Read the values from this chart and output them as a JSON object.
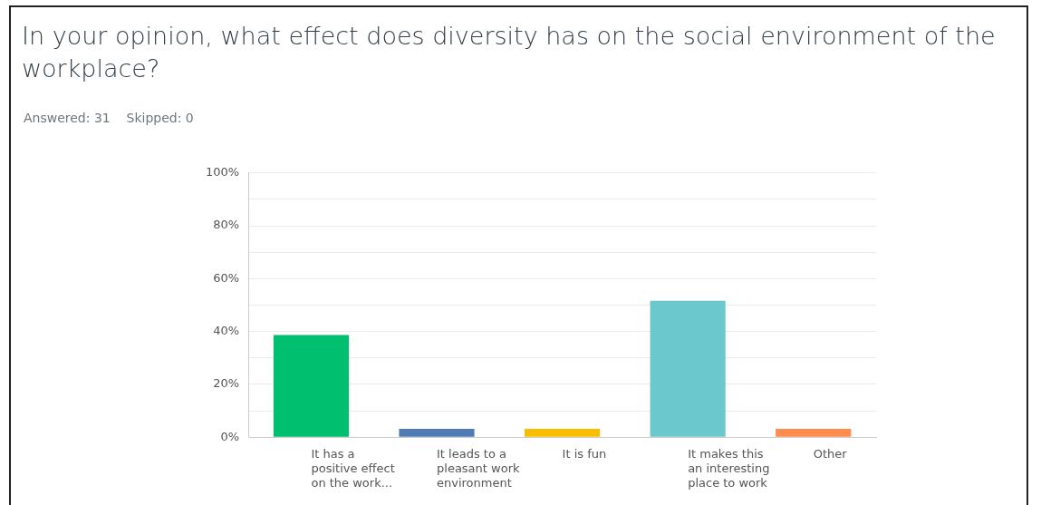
{
  "chart_data": {
    "type": "bar",
    "title": "In your opinion, what effect does diversity has on the social environment of the workplace?",
    "subtitle": "Answered: 31    Skipped: 0",
    "categories": [
      "It has a positive effect on the work...",
      "It leads to a pleasant work environment",
      "It is fun",
      "It makes this an interesting place to work",
      "Other"
    ],
    "values": [
      38.7,
      3.2,
      3.2,
      51.6,
      3.2
    ],
    "colors": [
      "#00bf6f",
      "#507cb6",
      "#f9be00",
      "#6bc8cd",
      "#ff8b4f"
    ],
    "ylim": [
      0,
      100
    ],
    "yticks": [
      {
        "value": 0,
        "label": "0%"
      },
      {
        "value": 10,
        "label": null
      },
      {
        "value": 20,
        "label": "20%"
      },
      {
        "value": 30,
        "label": null
      },
      {
        "value": 40,
        "label": "40%"
      },
      {
        "value": 50,
        "label": null
      },
      {
        "value": 60,
        "label": "60%"
      },
      {
        "value": 70,
        "label": null
      },
      {
        "value": 80,
        "label": "80%"
      },
      {
        "value": 90,
        "label": null
      },
      {
        "value": 100,
        "label": "100%"
      }
    ],
    "grid": "y",
    "legend": false
  }
}
